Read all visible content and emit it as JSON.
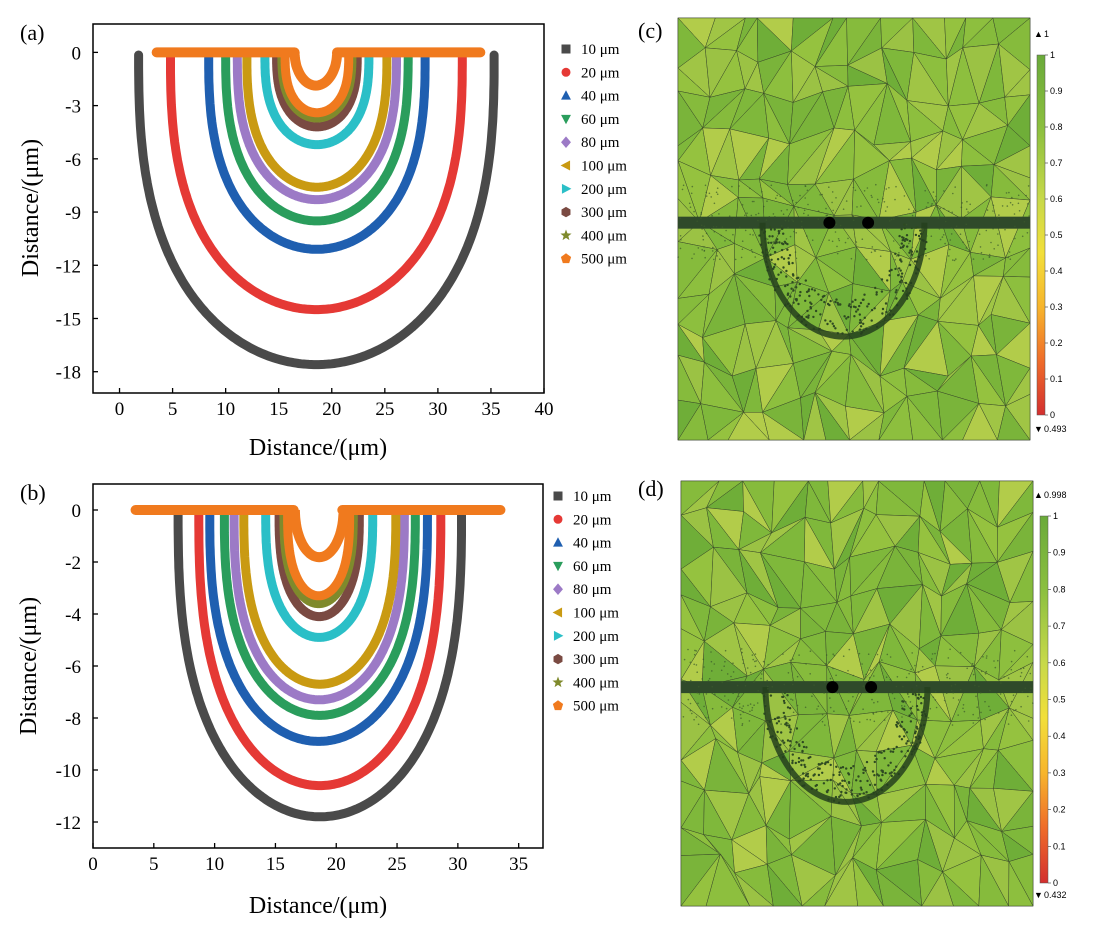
{
  "figure": {
    "panels": [
      {
        "id": "a",
        "label": "(a)"
      },
      {
        "id": "b",
        "label": "(b)"
      },
      {
        "id": "c",
        "label": "(c)"
      },
      {
        "id": "d",
        "label": "(d)"
      }
    ]
  },
  "legend_markers": [
    "square",
    "circle",
    "triangle-up",
    "triangle-down",
    "diamond",
    "triangle-left",
    "triangle-right",
    "hexagon",
    "star",
    "pentagon"
  ],
  "colors": [
    "#4a4a4a",
    "#e53935",
    "#1f5fb0",
    "#2a9d5c",
    "#9c7ac6",
    "#c99a12",
    "#2bbfc7",
    "#7a4a42",
    "#7f8a2c",
    "#f07a1e"
  ],
  "chart_data": [
    {
      "type": "line",
      "panel": "a",
      "xlabel": "Distance/(μm)",
      "ylabel": "Distance/(μm)",
      "xlim": [
        -2.5,
        40
      ],
      "ylim": [
        -19.2,
        1.6
      ],
      "xticks": [
        0,
        5,
        10,
        15,
        20,
        25,
        30,
        35,
        40
      ],
      "yticks": [
        0,
        -3,
        -6,
        -9,
        -12,
        -15,
        -18
      ],
      "xtick_labels": [
        "0",
        "5",
        "10",
        "15",
        "20",
        "25",
        "30",
        "35",
        "40"
      ],
      "ytick_labels": [
        "0",
        "-3",
        "-6",
        "-9",
        "-12",
        "-15",
        "-18"
      ],
      "series": [
        {
          "name": "10 μm",
          "depth": 17.6,
          "outer_left": 1.8,
          "outer_right": 35.3
        },
        {
          "name": "20 μm",
          "depth": 14.5,
          "outer_left": 4.8,
          "outer_right": 32.3
        },
        {
          "name": "40 μm",
          "depth": 11.1,
          "outer_left": 8.4,
          "outer_right": 28.8
        },
        {
          "name": "60 μm",
          "depth": 9.5,
          "outer_left": 10.0,
          "outer_right": 27.2
        },
        {
          "name": "80 μm",
          "depth": 8.3,
          "outer_left": 11.1,
          "outer_right": 26.1
        },
        {
          "name": "100 μm",
          "depth": 7.6,
          "outer_left": 12.0,
          "outer_right": 25.2
        },
        {
          "name": "200 μm",
          "depth": 5.2,
          "outer_left": 13.7,
          "outer_right": 23.5
        },
        {
          "name": "300 μm",
          "depth": 4.2,
          "outer_left": 14.8,
          "outer_right": 22.4
        },
        {
          "name": "400 μm",
          "depth": 3.7,
          "outer_left": 15.3,
          "outer_right": 21.9
        },
        {
          "name": "500 μm",
          "depth": 3.4,
          "outer_left": 15.6,
          "outer_right": 21.6
        }
      ],
      "electrode": {
        "left": [
          3.5,
          16.5
        ],
        "right": [
          20.5,
          34.0
        ],
        "notch_center": 18.5
      },
      "legend": "top-right outside"
    },
    {
      "type": "line",
      "panel": "b",
      "xlabel": "Distance/(μm)",
      "ylabel": "Distance/(μm)",
      "xlim": [
        0,
        37
      ],
      "ylim": [
        -13,
        1
      ],
      "xticks": [
        0,
        5,
        10,
        15,
        20,
        25,
        30,
        35
      ],
      "yticks": [
        0,
        -2,
        -4,
        -6,
        -8,
        -10,
        -12
      ],
      "xtick_labels": [
        "0",
        "5",
        "10",
        "15",
        "20",
        "25",
        "30",
        "35"
      ],
      "ytick_labels": [
        "0",
        "-2",
        "-4",
        "-6",
        "-8",
        "-10",
        "-12"
      ],
      "series": [
        {
          "name": "10 μm",
          "depth": 11.8,
          "outer_left": 7.0,
          "outer_right": 30.3
        },
        {
          "name": "20 μm",
          "depth": 10.6,
          "outer_left": 8.7,
          "outer_right": 28.6
        },
        {
          "name": "40 μm",
          "depth": 8.9,
          "outer_left": 9.6,
          "outer_right": 27.5
        },
        {
          "name": "60 μm",
          "depth": 7.9,
          "outer_left": 10.8,
          "outer_right": 26.5
        },
        {
          "name": "80 μm",
          "depth": 7.3,
          "outer_left": 11.6,
          "outer_right": 25.6
        },
        {
          "name": "100 μm",
          "depth": 6.7,
          "outer_left": 12.4,
          "outer_right": 24.9
        },
        {
          "name": "200 μm",
          "depth": 4.9,
          "outer_left": 14.2,
          "outer_right": 23.0
        },
        {
          "name": "300 μm",
          "depth": 4.1,
          "outer_left": 15.3,
          "outer_right": 21.9
        },
        {
          "name": "400 μm",
          "depth": 3.6,
          "outer_left": 15.7,
          "outer_right": 21.4
        },
        {
          "name": "500 μm",
          "depth": 3.3,
          "outer_left": 16.0,
          "outer_right": 21.1
        }
      ],
      "electrode": {
        "left": [
          3.5,
          16.5
        ],
        "right": [
          20.5,
          33.5
        ],
        "notch_center": 18.6
      },
      "legend": "top-right outside"
    },
    {
      "type": "heatmap",
      "panel": "c",
      "colorbar": {
        "max_label": "1",
        "min_label": "0.493",
        "ticks": [
          "1",
          "0.9",
          "0.8",
          "0.7",
          "0.6",
          "0.5",
          "0.4",
          "0.3",
          "0.2",
          "0.1",
          "0"
        ],
        "colors": [
          "#d32f2f",
          "#ef6c2a",
          "#f7b52c",
          "#f2df3a",
          "#c7d94a",
          "#8bbf3f",
          "#6aaa3a"
        ]
      }
    },
    {
      "type": "heatmap",
      "panel": "d",
      "colorbar": {
        "max_label": "0.998",
        "min_label": "0.432",
        "ticks": [
          "1",
          "0.9",
          "0.8",
          "0.7",
          "0.6",
          "0.5",
          "0.4",
          "0.3",
          "0.2",
          "0.1",
          "0"
        ],
        "colors": [
          "#d32f2f",
          "#ef6c2a",
          "#f7b52c",
          "#f2df3a",
          "#c7d94a",
          "#8bbf3f",
          "#6aaa3a"
        ]
      }
    }
  ]
}
